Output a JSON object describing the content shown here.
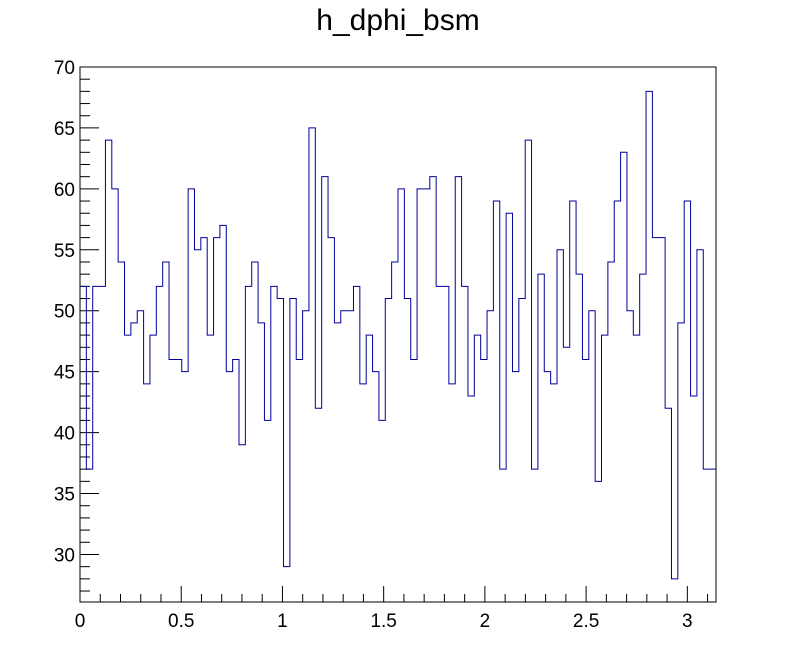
{
  "chart_data": {
    "type": "histogram",
    "title": "h_dphi_bsm",
    "xlabel": "",
    "ylabel": "",
    "xlim": [
      0,
      3.1416
    ],
    "ylim": [
      26.1,
      70
    ],
    "bins": 100,
    "x_ticks": [
      "0",
      "0.5",
      "1",
      "1.5",
      "2",
      "2.5",
      "3"
    ],
    "y_ticks": [
      "30",
      "35",
      "40",
      "45",
      "50",
      "55",
      "60",
      "65",
      "70"
    ],
    "line_color": "#000099",
    "values": [
      52,
      37,
      52,
      52,
      64,
      60,
      54,
      48,
      49,
      50,
      44,
      48,
      52,
      54,
      46,
      46,
      45,
      60,
      55,
      56,
      48,
      56,
      57,
      45,
      46,
      39,
      52,
      54,
      49,
      41,
      52,
      51,
      29,
      51,
      46,
      50,
      65,
      42,
      61,
      56,
      49,
      50,
      50,
      52,
      44,
      48,
      45,
      41,
      51,
      54,
      60,
      51,
      46,
      60,
      60,
      61,
      52,
      52,
      44,
      61,
      52,
      43,
      48,
      46,
      50,
      59,
      37,
      58,
      45,
      51,
      64,
      37,
      53,
      45,
      44,
      55,
      47,
      59,
      53,
      46,
      50,
      36,
      48,
      54,
      59,
      63,
      50,
      48,
      53,
      68,
      56,
      56,
      42,
      28,
      49,
      59,
      43,
      55,
      37,
      37
    ]
  }
}
